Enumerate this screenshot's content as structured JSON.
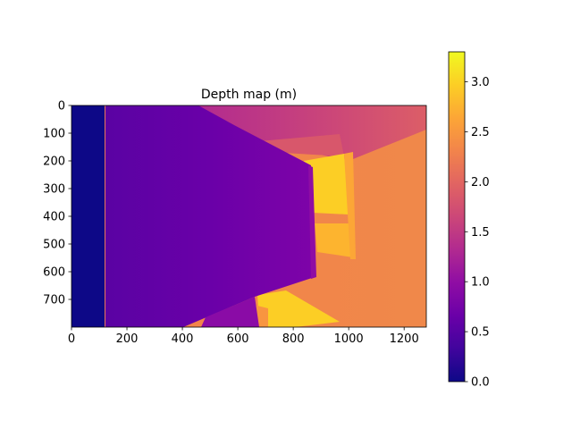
{
  "chart_data": {
    "type": "heatmap",
    "title": "Depth map (m)",
    "xlabel": "",
    "ylabel": "",
    "x_range": [
      0,
      1280
    ],
    "y_range": [
      0,
      800
    ],
    "x_ticks": [
      0,
      200,
      400,
      600,
      800,
      1000,
      1200
    ],
    "y_ticks": [
      0,
      100,
      200,
      300,
      400,
      500,
      600,
      700
    ],
    "colormap": "plasma",
    "colorbar": {
      "range": [
        0.0,
        3.3
      ],
      "ticks": [
        "0.0",
        "0.5",
        "1.0",
        "1.5",
        "2.0",
        "2.5",
        "3.0"
      ]
    },
    "regions": [
      {
        "name": "left edge band",
        "x": [
          0,
          118
        ],
        "y": [
          0,
          800
        ],
        "depth": 0.0
      },
      {
        "name": "near foreground block",
        "x": [
          118,
          880
        ],
        "y": [
          0,
          800
        ],
        "depth_range": [
          0.6,
          1.0
        ]
      },
      {
        "name": "upper ceiling area",
        "x": [
          480,
          1280
        ],
        "y": [
          0,
          170
        ],
        "depth_range": [
          1.5,
          2.0
        ]
      },
      {
        "name": "far right background",
        "x": [
          880,
          1280
        ],
        "y": [
          100,
          800
        ],
        "depth_range": [
          2.1,
          2.6
        ]
      },
      {
        "name": "deep corridor",
        "x": [
          880,
          1000
        ],
        "y": [
          180,
          300
        ],
        "depth_range": [
          2.8,
          3.3
        ]
      }
    ]
  }
}
